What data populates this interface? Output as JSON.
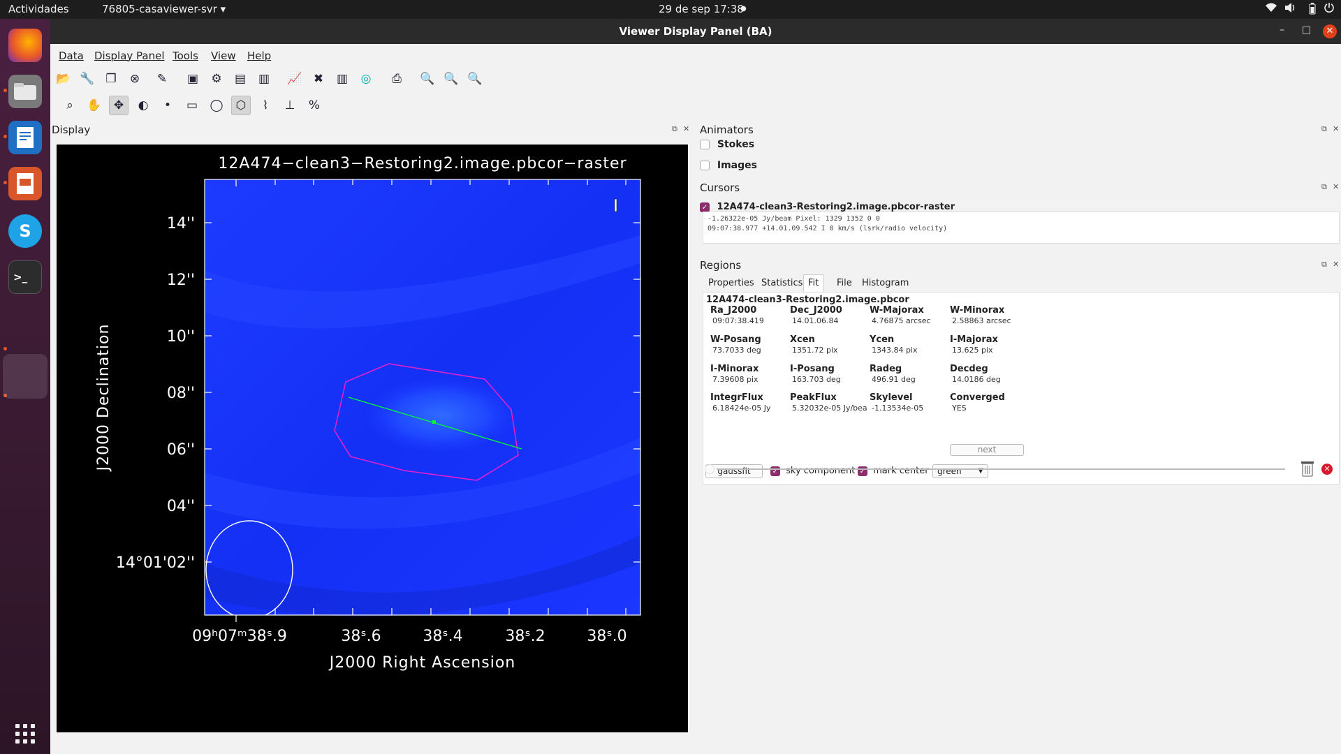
{
  "topbar": {
    "activities": "Actividades",
    "app_menu": "76805-casaviewer-svr ▾",
    "clock": "29 de sep  17:38",
    "record_dot": "●",
    "wifi_icon": "wifi-icon",
    "sound_icon": "speaker-icon",
    "battery_icon": "battery-icon",
    "power_icon": "power-icon"
  },
  "window": {
    "title": "Viewer Display Panel (BA)",
    "minimize": "–",
    "maximize": "□",
    "close": "✕"
  },
  "menu": [
    "Data",
    "Display Panel",
    "Tools",
    "View",
    "Help"
  ],
  "toolbar1": [
    {
      "icon": "open-folder-icon",
      "glyph": "📂"
    },
    {
      "icon": "wrench-icon",
      "glyph": "🔧"
    },
    {
      "icon": "copy-icon",
      "glyph": "❐"
    },
    {
      "icon": "close-data-icon",
      "glyph": "⊗"
    },
    {
      "icon": "brush-icon",
      "glyph": "✎"
    },
    {
      "icon": "new-panel-icon",
      "glyph": "▣"
    },
    {
      "icon": "panel-options-icon",
      "glyph": "⚙"
    },
    {
      "icon": "save-panel-icon",
      "glyph": "▤"
    },
    {
      "icon": "restore-panel-icon",
      "glyph": "▥"
    },
    {
      "icon": "spectrum-icon",
      "glyph": "📈"
    },
    {
      "icon": "fit-icon",
      "glyph": "✖"
    },
    {
      "icon": "histogram-icon",
      "glyph": "▥"
    },
    {
      "icon": "target-icon",
      "glyph": "◎"
    },
    {
      "icon": "print-icon",
      "glyph": "⎙"
    },
    {
      "icon": "zoom-in-icon",
      "glyph": "🔍"
    },
    {
      "icon": "zoom-out-icon",
      "glyph": "🔍"
    },
    {
      "icon": "zoom-original-icon",
      "glyph": "🔍"
    }
  ],
  "toolbar2": [
    {
      "icon": "zoom-tool-icon",
      "glyph": "⌕"
    },
    {
      "icon": "pan-tool-icon",
      "glyph": "✋"
    },
    {
      "icon": "move-tool-icon",
      "glyph": "✥"
    },
    {
      "icon": "contrast-tool-icon",
      "glyph": "◐"
    },
    {
      "icon": "point-tool-icon",
      "glyph": "•"
    },
    {
      "icon": "rectangle-region-icon",
      "glyph": "▭"
    },
    {
      "icon": "ellipse-region-icon",
      "glyph": "◯"
    },
    {
      "icon": "polygon-region-icon",
      "glyph": "⬡"
    },
    {
      "icon": "polyline-icon",
      "glyph": "⌇"
    },
    {
      "icon": "ruler-icon",
      "glyph": "⊥"
    },
    {
      "icon": "percentage-icon",
      "glyph": "%"
    }
  ],
  "display": {
    "label": "Display",
    "plot_title": "12A474−clean3−Restoring2.image.pbcor−raster",
    "ylabel": "J2000 Declination",
    "xlabel": "J2000 Right Ascension",
    "yticks": [
      "14''",
      "12''",
      "10''",
      "08''",
      "06''",
      "04''",
      "14°01'02''"
    ],
    "xticks": [
      {
        "text": "09ʰ07ᵐ38ˢ.9"
      },
      {
        "text": "38ˢ.6"
      },
      {
        "text": "38ˢ.4"
      },
      {
        "text": "38ˢ.2"
      },
      {
        "text": "38ˢ.0"
      }
    ],
    "colors": {
      "background": "#000000",
      "image": "#1a35ff",
      "region": "#e020d0",
      "axis": "#00ff33"
    }
  },
  "animators": {
    "label": "Animators",
    "stokes": "Stokes",
    "images": "Images"
  },
  "cursors": {
    "label": "Cursors",
    "layer": "12A474-clean3-Restoring2.image.pbcor-raster",
    "line1": "-1.26322e-05 Jy/beam   Pixel: 1329 1352 0 0",
    "line2": "09:07:38.977  +14.01.09.542  I  0 km/s (lsrk/radio velocity)"
  },
  "regions": {
    "label": "Regions",
    "tabs": [
      "Properties",
      "Statistics",
      "Fit",
      "File",
      "Histogram"
    ],
    "active_tab": "Fit",
    "fit": {
      "image": "12A474-clean3-Restoring2.image.pbcor",
      "rows": [
        [
          {
            "k": "Ra_J2000",
            "v": "09:07:38.419"
          },
          {
            "k": "Dec_J2000",
            "v": "14.01.06.84"
          },
          {
            "k": "W-Majorax",
            "v": "4.76875 arcsec"
          },
          {
            "k": "W-Minorax",
            "v": "2.58863 arcsec"
          }
        ],
        [
          {
            "k": "W-Posang",
            "v": "73.7033 deg"
          },
          {
            "k": "Xcen",
            "v": "1351.72 pix"
          },
          {
            "k": "Ycen",
            "v": "1343.84 pix"
          },
          {
            "k": "I-Majorax",
            "v": "13.625 pix"
          }
        ],
        [
          {
            "k": "I-Minorax",
            "v": "7.39608 pix"
          },
          {
            "k": "I-Posang",
            "v": "163.703 deg"
          },
          {
            "k": "Radeg",
            "v": "496.91 deg"
          },
          {
            "k": "Decdeg",
            "v": "14.0186 deg"
          }
        ],
        [
          {
            "k": "IntegrFlux",
            "v": "6.18424e-05 Jy"
          },
          {
            "k": "PeakFlux",
            "v": "5.32032e-05 Jy/bea"
          },
          {
            "k": "Skylevel",
            "v": "-1.13534e-05"
          },
          {
            "k": "Converged",
            "v": "YES"
          }
        ]
      ],
      "next": "next",
      "gaussfit": "gaussfit",
      "sky_component": "sky component",
      "mark_center": "mark center",
      "color_select": "green"
    }
  }
}
